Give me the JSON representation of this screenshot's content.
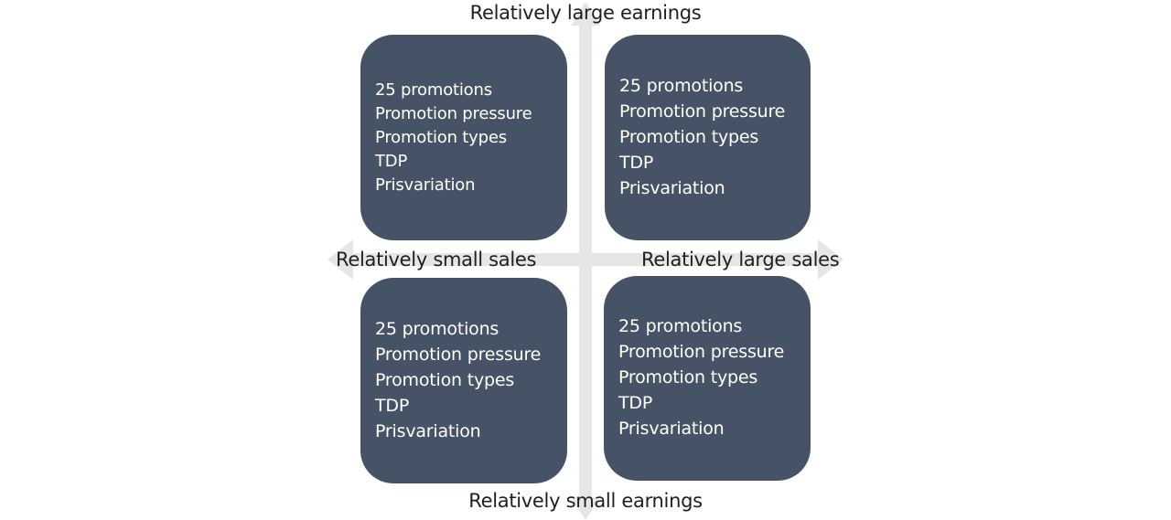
{
  "axes": {
    "top_label": "Relatively large earnings",
    "bottom_label": "Relatively small earnings",
    "left_label": "Relatively small sales",
    "right_label": "Relatively large sales",
    "arrow_color": "#e6e6e6"
  },
  "quadrants": {
    "top_left": {
      "items": [
        "25 promotions",
        "Promotion pressure",
        "Promotion types",
        "TDP",
        "Prisvariation"
      ]
    },
    "top_right": {
      "items": [
        "25 promotions",
        "Promotion pressure",
        "Promotion types",
        "TDP",
        "Prisvariation"
      ]
    },
    "bottom_left": {
      "items": [
        "25 promotions",
        "Promotion pressure",
        "Promotion types",
        "TDP",
        "Prisvariation"
      ]
    },
    "bottom_right": {
      "items": [
        "25 promotions",
        "Promotion pressure",
        "Promotion types",
        "TDP",
        "Prisvariation"
      ]
    }
  },
  "colors": {
    "quadrant_fill": "#465266",
    "quadrant_text": "#ffffff",
    "label_text": "#1f1f1f"
  }
}
